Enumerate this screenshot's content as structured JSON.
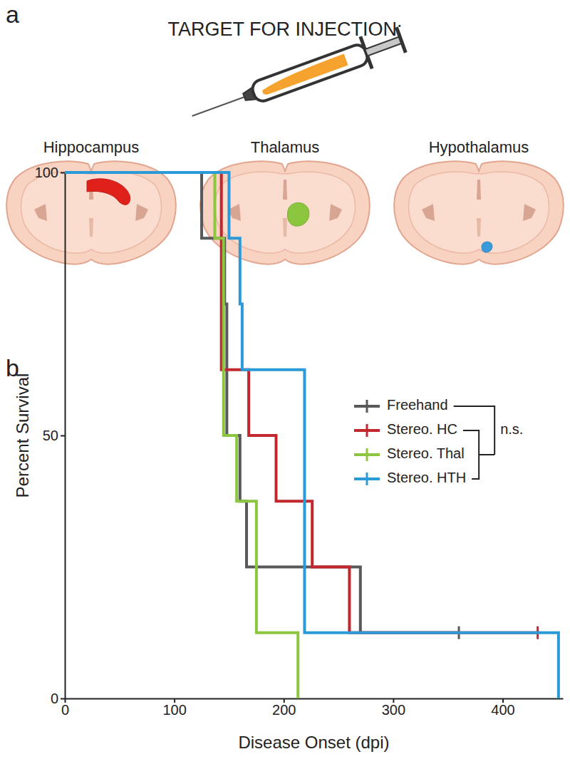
{
  "panel_a": {
    "label": "a",
    "title": "TARGET FOR INJECTION:",
    "targets": [
      {
        "name": "Hippocampus",
        "color": "#e0201b"
      },
      {
        "name": "Thalamus",
        "color": "#8cc63e"
      },
      {
        "name": "Hypothalamus",
        "color": "#3b9ad9"
      }
    ]
  },
  "panel_b": {
    "label": "b"
  },
  "chart_data": {
    "type": "line",
    "line_style": "step",
    "x_label": "Disease Onset (dpi)",
    "y_label": "Percent Survival",
    "xlim": [
      0,
      455
    ],
    "xticks": [
      0,
      100,
      200,
      300,
      400
    ],
    "ylim": [
      0,
      100
    ],
    "yticks": [
      0,
      50,
      100
    ],
    "legend": "right",
    "annotations": [
      "n.s."
    ],
    "series": [
      {
        "name": "Freehand",
        "color": "#58595b",
        "x": [
          0,
          125,
          146,
          148,
          160,
          166,
          270,
          360
        ],
        "values": [
          100,
          87.5,
          75,
          50,
          37.5,
          25,
          12.5,
          12.5
        ],
        "censored": [
          360
        ]
      },
      {
        "name": "Stereo. HC",
        "color": "#c1272d",
        "x": [
          0,
          143,
          168,
          193,
          226,
          260,
          432
        ],
        "values": [
          100,
          62.5,
          50,
          37.5,
          25,
          12.5,
          12.5
        ],
        "censored": [
          432
        ]
      },
      {
        "name": "Stereo. Thal",
        "color": "#8cc63e",
        "x": [
          0,
          137,
          145,
          157,
          175,
          213
        ],
        "values": [
          100,
          87.5,
          50,
          37.5,
          12.5,
          0
        ],
        "censored": []
      },
      {
        "name": "Stereo. HTH",
        "color": "#2b9ad6",
        "x": [
          0,
          150,
          160,
          162,
          219,
          451
        ],
        "values": [
          100,
          87.5,
          75,
          62.5,
          12.5,
          0
        ],
        "censored": []
      }
    ]
  }
}
